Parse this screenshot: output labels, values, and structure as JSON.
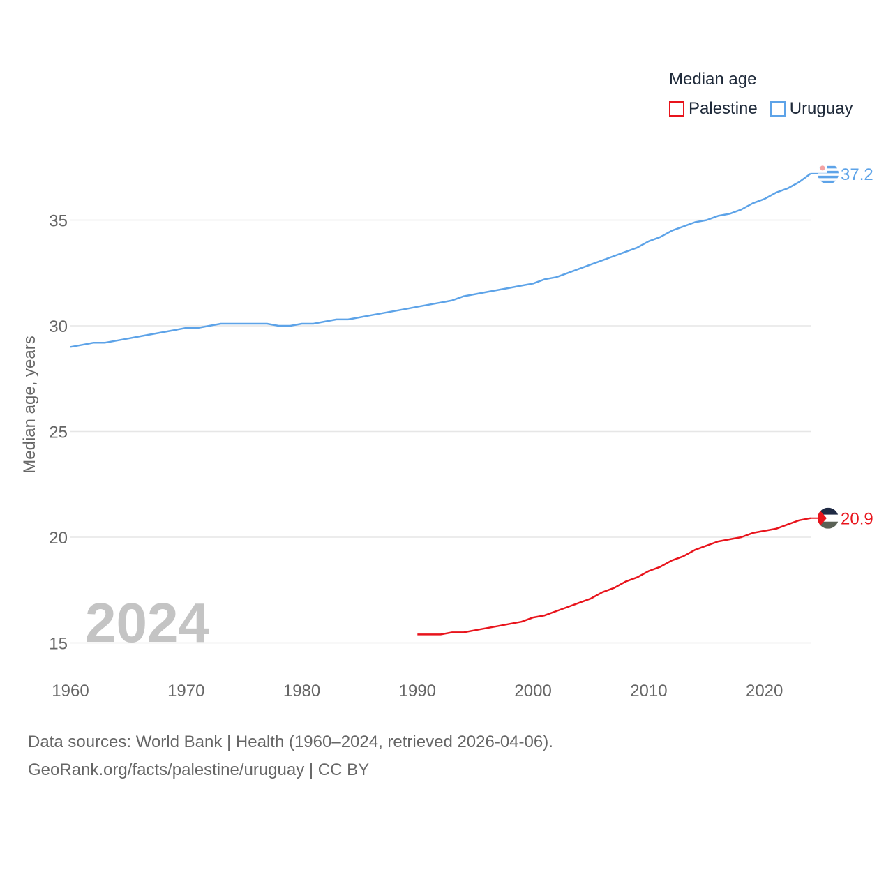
{
  "chart_data": {
    "type": "line",
    "legend_title": "Median age",
    "ylabel": "Median age, years",
    "year_label": "2024",
    "xlim": [
      1960,
      2024
    ],
    "ylim": [
      14.5,
      37.5
    ],
    "x_ticks": [
      1960,
      1970,
      1980,
      1990,
      2000,
      2010,
      2020
    ],
    "y_ticks": [
      15,
      20,
      25,
      30,
      35
    ],
    "series": [
      {
        "name": "Palestine",
        "color": "#e8141c",
        "end_label": "20.9",
        "flag": "palestine-flag",
        "points": [
          [
            1990,
            15.4
          ],
          [
            1991,
            15.4
          ],
          [
            1992,
            15.4
          ],
          [
            1993,
            15.5
          ],
          [
            1994,
            15.5
          ],
          [
            1995,
            15.6
          ],
          [
            1996,
            15.7
          ],
          [
            1997,
            15.8
          ],
          [
            1998,
            15.9
          ],
          [
            1999,
            16.0
          ],
          [
            2000,
            16.2
          ],
          [
            2001,
            16.3
          ],
          [
            2002,
            16.5
          ],
          [
            2003,
            16.7
          ],
          [
            2004,
            16.9
          ],
          [
            2005,
            17.1
          ],
          [
            2006,
            17.4
          ],
          [
            2007,
            17.6
          ],
          [
            2008,
            17.9
          ],
          [
            2009,
            18.1
          ],
          [
            2010,
            18.4
          ],
          [
            2011,
            18.6
          ],
          [
            2012,
            18.9
          ],
          [
            2013,
            19.1
          ],
          [
            2014,
            19.4
          ],
          [
            2015,
            19.6
          ],
          [
            2016,
            19.8
          ],
          [
            2017,
            19.9
          ],
          [
            2018,
            20.0
          ],
          [
            2019,
            20.2
          ],
          [
            2020,
            20.3
          ],
          [
            2021,
            20.4
          ],
          [
            2022,
            20.6
          ],
          [
            2023,
            20.8
          ],
          [
            2024,
            20.9
          ]
        ]
      },
      {
        "name": "Uruguay",
        "color": "#5da3e8",
        "end_label": "37.2",
        "flag": "uruguay-flag",
        "points": [
          [
            1960,
            29.0
          ],
          [
            1961,
            29.1
          ],
          [
            1962,
            29.2
          ],
          [
            1963,
            29.2
          ],
          [
            1964,
            29.3
          ],
          [
            1965,
            29.4
          ],
          [
            1966,
            29.5
          ],
          [
            1967,
            29.6
          ],
          [
            1968,
            29.7
          ],
          [
            1969,
            29.8
          ],
          [
            1970,
            29.9
          ],
          [
            1971,
            29.9
          ],
          [
            1972,
            30.0
          ],
          [
            1973,
            30.1
          ],
          [
            1974,
            30.1
          ],
          [
            1975,
            30.1
          ],
          [
            1976,
            30.1
          ],
          [
            1977,
            30.1
          ],
          [
            1978,
            30.0
          ],
          [
            1979,
            30.0
          ],
          [
            1980,
            30.1
          ],
          [
            1981,
            30.1
          ],
          [
            1982,
            30.2
          ],
          [
            1983,
            30.3
          ],
          [
            1984,
            30.3
          ],
          [
            1985,
            30.4
          ],
          [
            1986,
            30.5
          ],
          [
            1987,
            30.6
          ],
          [
            1988,
            30.7
          ],
          [
            1989,
            30.8
          ],
          [
            1990,
            30.9
          ],
          [
            1991,
            31.0
          ],
          [
            1992,
            31.1
          ],
          [
            1993,
            31.2
          ],
          [
            1994,
            31.4
          ],
          [
            1995,
            31.5
          ],
          [
            1996,
            31.6
          ],
          [
            1997,
            31.7
          ],
          [
            1998,
            31.8
          ],
          [
            1999,
            31.9
          ],
          [
            2000,
            32.0
          ],
          [
            2001,
            32.2
          ],
          [
            2002,
            32.3
          ],
          [
            2003,
            32.5
          ],
          [
            2004,
            32.7
          ],
          [
            2005,
            32.9
          ],
          [
            2006,
            33.1
          ],
          [
            2007,
            33.3
          ],
          [
            2008,
            33.5
          ],
          [
            2009,
            33.7
          ],
          [
            2010,
            34.0
          ],
          [
            2011,
            34.2
          ],
          [
            2012,
            34.5
          ],
          [
            2013,
            34.7
          ],
          [
            2014,
            34.9
          ],
          [
            2015,
            35.0
          ],
          [
            2016,
            35.2
          ],
          [
            2017,
            35.3
          ],
          [
            2018,
            35.5
          ],
          [
            2019,
            35.8
          ],
          [
            2020,
            36.0
          ],
          [
            2021,
            36.3
          ],
          [
            2022,
            36.5
          ],
          [
            2023,
            36.8
          ],
          [
            2024,
            37.2
          ]
        ]
      }
    ]
  },
  "footer": {
    "source_line": "Data sources: World Bank | Health (1960–2024, retrieved 2026-04-06).",
    "credit_line": "GeoRank.org/facts/palestine/uruguay | CC BY"
  }
}
